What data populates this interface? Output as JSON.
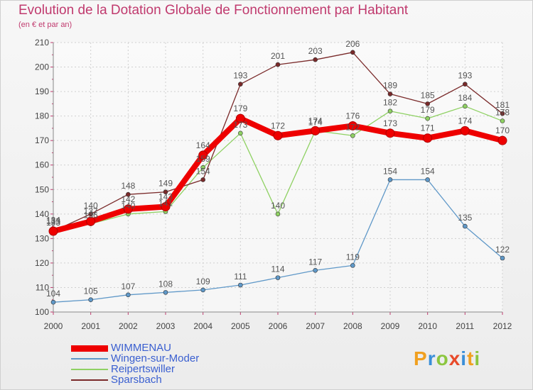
{
  "title": "Evolution de la Dotation Globale de Fonctionnement par Habitant",
  "subtitle": "(en € et par an)",
  "brand": {
    "letters": [
      "P",
      "r",
      "o",
      "x",
      "i",
      "t",
      "i"
    ],
    "colors": [
      "#f0a020",
      "#3a8fd8",
      "#8cc63f",
      "#e84a2a",
      "#3a8fd8",
      "#f0a020",
      "#8cc63f"
    ]
  },
  "chart_data": {
    "type": "line",
    "title": "Evolution de la Dotation Globale de Fonctionnement par Habitant",
    "subtitle": "(en € et par an)",
    "xlabel": "",
    "ylabel": "",
    "x": [
      "2000",
      "2001",
      "2002",
      "2003",
      "2004",
      "2005",
      "2006",
      "2007",
      "2008",
      "2009",
      "2010",
      "2011",
      "2012"
    ],
    "ylim": [
      100,
      210
    ],
    "yticks": [
      100,
      110,
      120,
      130,
      140,
      150,
      160,
      170,
      180,
      190,
      200,
      210
    ],
    "grid": true,
    "series": [
      {
        "name": "Wingen-sur-Moder",
        "color": "#5f98c8",
        "values": [
          104,
          105,
          107,
          108,
          109,
          111,
          114,
          117,
          119,
          154,
          154,
          135,
          122
        ]
      },
      {
        "name": "Reipertswiller",
        "color": "#8fd163",
        "values": [
          134,
          136,
          140,
          141,
          159,
          173,
          140,
          174,
          172,
          182,
          179,
          184,
          178
        ]
      },
      {
        "name": "Sparsbach",
        "color": "#7a2a2a",
        "values": [
          133,
          140,
          148,
          149,
          154,
          193,
          201,
          203,
          206,
          189,
          185,
          193,
          181
        ]
      },
      {
        "name": "WIMMENAU",
        "color": "#ee0000",
        "values": [
          133,
          137,
          142,
          143,
          164,
          179,
          172,
          174,
          176,
          173,
          171,
          174,
          170
        ]
      }
    ],
    "legend": [
      "WIMMENAU",
      "Wingen-sur-Moder",
      "Reipertswiller",
      "Sparsbach"
    ]
  }
}
